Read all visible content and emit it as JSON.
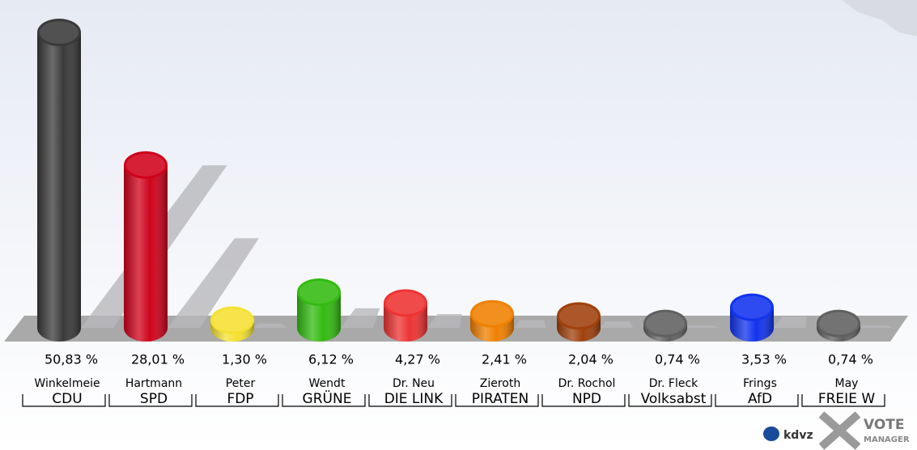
{
  "chart_data": {
    "type": "bar",
    "categories": [
      "Winkelmeie",
      "Hartmann",
      "Peter",
      "Wendt",
      "Dr. Neu",
      "Zieroth",
      "Dr. Rochol",
      "Dr. Fleck",
      "Frings",
      "May"
    ],
    "parties": [
      "CDU",
      "SPD",
      "FDP",
      "GRÜNE",
      "DIE LINK",
      "PIRATEN",
      "NPD",
      "Volksabst",
      "AfD",
      "FREIE W"
    ],
    "values": [
      50.83,
      28.01,
      1.3,
      6.12,
      4.27,
      2.41,
      2.04,
      0.74,
      3.53,
      0.74
    ],
    "value_labels": [
      "50,83 %",
      "28,01 %",
      "1,30 %",
      "6,12 %",
      "4,27 %",
      "2,41 %",
      "2,04 %",
      "0,74 %",
      "3,53 %",
      "0,74 %"
    ],
    "colors": [
      "#3a3a3a",
      "#d0021b",
      "#f5e132",
      "#33bb11",
      "#ee3333",
      "#f08000",
      "#a0400c",
      "#606060",
      "#1133ee",
      "#606060"
    ],
    "logo": [
      "kdvz",
      "VOTE",
      "MANAGER"
    ]
  }
}
